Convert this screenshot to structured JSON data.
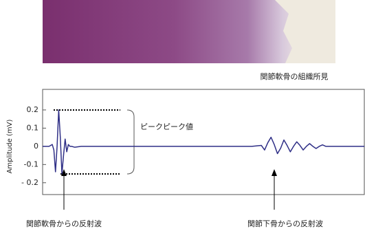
{
  "chart_data": {
    "type": "line",
    "y_label": "Amplitude (mV)",
    "annotations": {
      "caption": "関節軟骨の組織所見",
      "peak_to_peak": "ピークピーク値",
      "cartilage_reflection": "関節軟骨からの反射波",
      "bone_reflection": "関節下骨からの反射波"
    },
    "x": [
      0,
      2,
      3,
      3.5,
      4,
      4.5,
      5,
      5.5,
      6,
      6.5,
      7,
      7.5,
      8,
      8.5,
      9,
      10,
      12,
      20,
      30,
      40,
      50,
      60,
      65,
      68,
      69,
      70,
      71,
      72,
      73,
      74,
      75,
      76,
      77,
      78,
      79,
      80,
      81,
      82,
      83,
      84,
      85,
      86,
      87,
      88,
      90,
      95,
      100
    ],
    "series": [
      {
        "color": "#2e2e86",
        "values": [
          0,
          0,
          0.01,
          -0.02,
          -0.14,
          0.0,
          0.2,
          0.05,
          -0.15,
          -0.05,
          0.04,
          -0.03,
          0.01,
          0,
          0,
          -0.005,
          0,
          0,
          0,
          0,
          0,
          0,
          0,
          0.005,
          -0.02,
          0.02,
          0.05,
          0.01,
          -0.04,
          -0.01,
          0.035,
          0.005,
          -0.03,
          0.0,
          0.025,
          0.005,
          -0.02,
          0.0,
          0.015,
          0.0,
          -0.012,
          0.0,
          0.008,
          0,
          0,
          0,
          0
        ]
      }
    ],
    "xlim": [
      0,
      100
    ],
    "ylim": [
      -0.265,
      0.313
    ],
    "yticks": [
      {
        "value": -0.2,
        "label": "- 0.2"
      },
      -0.1,
      0,
      0.1,
      0.2
    ]
  }
}
